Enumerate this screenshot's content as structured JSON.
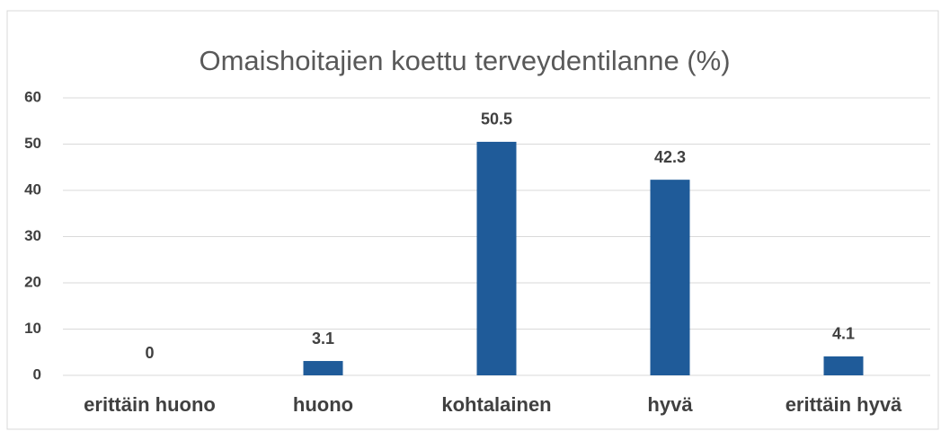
{
  "chart_data": {
    "type": "bar",
    "title": "Omaishoitajien koettu terveydentilanne (%)",
    "categories": [
      "erittäin huono",
      "huono",
      "kohtalainen",
      "hyvä",
      "erittäin hyvä"
    ],
    "values": [
      0,
      3.1,
      50.5,
      42.3,
      4.1
    ],
    "color": "#1f5b99",
    "ylim": [
      0,
      60
    ],
    "yticks": [
      0,
      10,
      20,
      30,
      40,
      50,
      60
    ],
    "grid": true,
    "data_labels": true
  }
}
